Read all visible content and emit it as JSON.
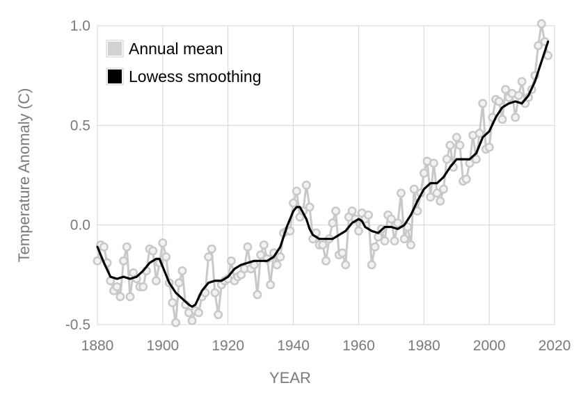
{
  "chart_data": {
    "type": "line",
    "xlabel": "YEAR",
    "ylabel": "Temperature Anomaly (C)",
    "xlim": [
      1880,
      2020
    ],
    "ylim": [
      -0.5,
      1.0
    ],
    "x_ticks": [
      "1880",
      "1900",
      "1920",
      "1940",
      "1960",
      "1980",
      "2000",
      "2020"
    ],
    "y_ticks": [
      "1.0",
      "0.5",
      "0.0",
      "-0.5"
    ],
    "grid": true,
    "legend_position": "top-left",
    "colors": {
      "annual": "#c8c8c8",
      "annual_marker_fill": "#f2f2f2",
      "smooth": "#000000",
      "grid": "#d4d4d4",
      "ticks": "#7a7a7a"
    },
    "series": [
      {
        "name": "Annual mean",
        "style": "line-with-circle-markers",
        "x": [
          1880,
          1881,
          1882,
          1883,
          1884,
          1885,
          1886,
          1887,
          1888,
          1889,
          1890,
          1891,
          1892,
          1893,
          1894,
          1895,
          1896,
          1897,
          1898,
          1899,
          1900,
          1901,
          1902,
          1903,
          1904,
          1905,
          1906,
          1907,
          1908,
          1909,
          1910,
          1911,
          1912,
          1913,
          1914,
          1915,
          1916,
          1917,
          1918,
          1919,
          1920,
          1921,
          1922,
          1923,
          1924,
          1925,
          1926,
          1927,
          1928,
          1929,
          1930,
          1931,
          1932,
          1933,
          1934,
          1935,
          1936,
          1937,
          1938,
          1939,
          1940,
          1941,
          1942,
          1943,
          1944,
          1945,
          1946,
          1947,
          1948,
          1949,
          1950,
          1951,
          1952,
          1953,
          1954,
          1955,
          1956,
          1957,
          1958,
          1959,
          1960,
          1961,
          1962,
          1963,
          1964,
          1965,
          1966,
          1967,
          1968,
          1969,
          1970,
          1971,
          1972,
          1973,
          1974,
          1975,
          1976,
          1977,
          1978,
          1979,
          1980,
          1981,
          1982,
          1983,
          1984,
          1985,
          1986,
          1987,
          1988,
          1989,
          1990,
          1991,
          1992,
          1993,
          1994,
          1995,
          1996,
          1997,
          1998,
          1999,
          2000,
          2001,
          2002,
          2003,
          2004,
          2005,
          2006,
          2007,
          2008,
          2009,
          2010,
          2011,
          2012,
          2013,
          2014,
          2015,
          2016,
          2017,
          2018
        ],
        "values": [
          -0.18,
          -0.1,
          -0.11,
          -0.19,
          -0.28,
          -0.33,
          -0.31,
          -0.36,
          -0.18,
          -0.11,
          -0.36,
          -0.24,
          -0.27,
          -0.31,
          -0.31,
          -0.23,
          -0.12,
          -0.13,
          -0.28,
          -0.19,
          -0.09,
          -0.16,
          -0.29,
          -0.39,
          -0.49,
          -0.29,
          -0.23,
          -0.4,
          -0.44,
          -0.48,
          -0.43,
          -0.44,
          -0.36,
          -0.34,
          -0.16,
          -0.12,
          -0.34,
          -0.45,
          -0.3,
          -0.28,
          -0.27,
          -0.18,
          -0.28,
          -0.26,
          -0.25,
          -0.22,
          -0.11,
          -0.22,
          -0.2,
          -0.35,
          -0.15,
          -0.1,
          -0.17,
          -0.3,
          -0.14,
          -0.2,
          -0.16,
          -0.04,
          -0.03,
          -0.03,
          0.11,
          0.17,
          0.04,
          0.07,
          0.2,
          0.09,
          -0.07,
          -0.04,
          -0.1,
          -0.1,
          -0.18,
          -0.07,
          0.01,
          0.07,
          -0.15,
          -0.14,
          -0.2,
          0.04,
          0.07,
          0.03,
          -0.03,
          0.06,
          0.03,
          0.05,
          -0.2,
          -0.11,
          -0.06,
          -0.02,
          -0.08,
          0.05,
          0.03,
          -0.08,
          0.01,
          0.16,
          -0.07,
          -0.01,
          -0.1,
          0.18,
          0.07,
          0.16,
          0.26,
          0.32,
          0.14,
          0.31,
          0.16,
          0.12,
          0.18,
          0.33,
          0.4,
          0.29,
          0.44,
          0.4,
          0.22,
          0.23,
          0.31,
          0.45,
          0.33,
          0.46,
          0.61,
          0.38,
          0.39,
          0.54,
          0.63,
          0.62,
          0.53,
          0.68,
          0.64,
          0.66,
          0.54,
          0.65,
          0.72,
          0.61,
          0.64,
          0.68,
          0.75,
          0.9,
          1.01,
          0.92,
          0.85
        ]
      },
      {
        "name": "Lowess smoothing",
        "style": "smooth-line",
        "x": [
          1880,
          1882,
          1884,
          1886,
          1888,
          1890,
          1892,
          1894,
          1896,
          1898,
          1899,
          1900,
          1902,
          1904,
          1906,
          1908,
          1909,
          1910,
          1912,
          1914,
          1916,
          1918,
          1920,
          1922,
          1924,
          1926,
          1928,
          1930,
          1932,
          1934,
          1936,
          1938,
          1940,
          1941,
          1942,
          1943,
          1944,
          1945,
          1946,
          1948,
          1950,
          1952,
          1954,
          1956,
          1958,
          1960,
          1961,
          1962,
          1964,
          1966,
          1968,
          1970,
          1972,
          1974,
          1976,
          1978,
          1980,
          1982,
          1984,
          1986,
          1988,
          1990,
          1992,
          1994,
          1996,
          1998,
          2000,
          2002,
          2004,
          2006,
          2008,
          2010,
          2012,
          2014,
          2016,
          2018
        ],
        "values": [
          -0.11,
          -0.19,
          -0.26,
          -0.27,
          -0.26,
          -0.27,
          -0.26,
          -0.23,
          -0.19,
          -0.17,
          -0.17,
          -0.21,
          -0.29,
          -0.34,
          -0.37,
          -0.4,
          -0.41,
          -0.4,
          -0.33,
          -0.29,
          -0.28,
          -0.28,
          -0.26,
          -0.22,
          -0.2,
          -0.19,
          -0.18,
          -0.18,
          -0.18,
          -0.16,
          -0.11,
          -0.01,
          0.07,
          0.09,
          0.09,
          0.06,
          0.03,
          -0.02,
          -0.05,
          -0.07,
          -0.07,
          -0.07,
          -0.05,
          -0.03,
          0.01,
          0.03,
          0.02,
          -0.01,
          -0.03,
          -0.04,
          -0.01,
          -0.01,
          -0.02,
          0.0,
          0.05,
          0.12,
          0.18,
          0.21,
          0.21,
          0.24,
          0.29,
          0.33,
          0.33,
          0.33,
          0.36,
          0.44,
          0.47,
          0.54,
          0.59,
          0.61,
          0.62,
          0.61,
          0.65,
          0.72,
          0.82,
          0.92
        ]
      }
    ]
  }
}
